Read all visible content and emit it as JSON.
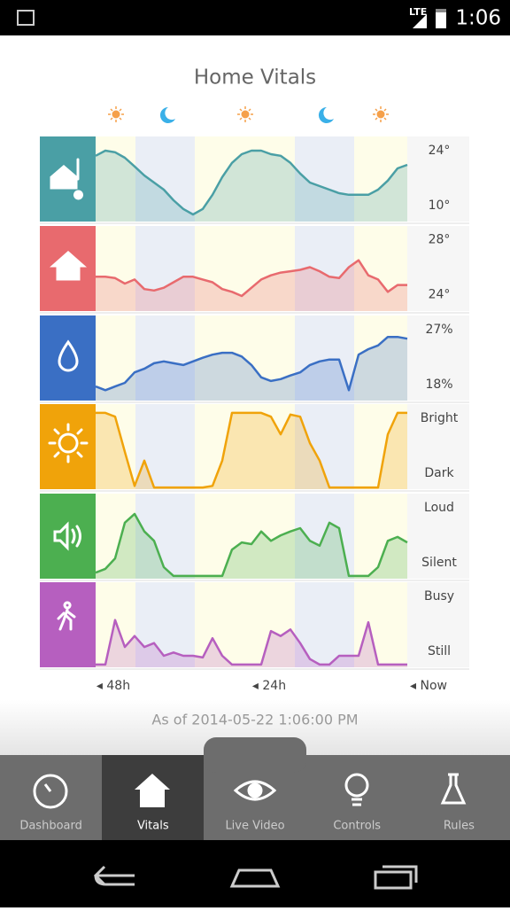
{
  "status_bar": {
    "network": "LTE",
    "time": "1:06"
  },
  "title": "Home Vitals",
  "panels": [
    {
      "type": "area",
      "color": "#4a9fa5",
      "ylim": [
        6,
        27.6
      ],
      "yticks": [
        {
          "value": 24,
          "label": "24°"
        },
        {
          "value": 10,
          "label": "10°"
        }
      ],
      "values": [
        22.7,
        24.0,
        23.6,
        22.2,
        20.0,
        17.7,
        15.9,
        14.1,
        11.4,
        9.2,
        7.8,
        9.2,
        12.8,
        17.3,
        20.9,
        23.1,
        24.0,
        24.0,
        23.1,
        22.7,
        20.9,
        18.2,
        15.9,
        15.0,
        14.1,
        13.2,
        12.8,
        12.8,
        12.8,
        14.1,
        16.4,
        19.5,
        20.4
      ]
    },
    {
      "type": "area",
      "color": "#e86a6e",
      "ylim": [
        22.8,
        29
      ],
      "yticks": [
        {
          "value": 28,
          "label": "28°"
        },
        {
          "value": 24,
          "label": "24°"
        }
      ],
      "values": [
        25.3,
        25.3,
        25.2,
        24.8,
        25.1,
        24.4,
        24.3,
        24.5,
        24.9,
        25.3,
        25.3,
        25.1,
        24.9,
        24.4,
        24.2,
        23.9,
        24.5,
        25.1,
        25.4,
        25.6,
        25.7,
        25.8,
        26.0,
        25.7,
        25.3,
        25.2,
        26.0,
        26.5,
        25.4,
        25.1,
        24.2,
        24.7,
        24.7
      ]
    },
    {
      "type": "area",
      "color": "#3a6fc4",
      "ylim": [
        15.4,
        29.3
      ],
      "yticks": [
        {
          "value": 27,
          "label": "27%"
        },
        {
          "value": 18,
          "label": "18%"
        }
      ],
      "values": [
        17.7,
        17.1,
        17.7,
        18.3,
        20.0,
        20.6,
        21.5,
        21.8,
        21.5,
        21.2,
        21.8,
        22.4,
        22.9,
        23.2,
        23.2,
        22.6,
        21.2,
        19.2,
        18.6,
        18.9,
        19.5,
        20.0,
        21.2,
        21.8,
        22.1,
        22.1,
        17.1,
        22.9,
        23.8,
        24.4,
        25.8,
        25.8,
        25.5
      ]
    },
    {
      "type": "area",
      "color": "#f0a30a",
      "ylim": [
        -0.29,
        1.26
      ],
      "yticks": [
        {
          "value": 1,
          "label": "Bright"
        },
        {
          "value": 0,
          "label": "Dark"
        }
      ],
      "values": [
        1.1,
        1.1,
        1.03,
        0.39,
        -0.23,
        0.23,
        -0.26,
        -0.26,
        -0.26,
        -0.26,
        -0.26,
        -0.26,
        -0.23,
        0.23,
        1.1,
        1.1,
        1.1,
        1.1,
        1.03,
        0.71,
        1.07,
        1.03,
        0.55,
        0.23,
        -0.26,
        -0.26,
        -0.26,
        -0.26,
        -0.26,
        -0.26,
        0.71,
        1.1,
        1.1
      ]
    },
    {
      "type": "area",
      "color": "#4caf50",
      "ylim": [
        -0.29,
        1.26
      ],
      "yticks": [
        {
          "value": 1,
          "label": "Loud"
        },
        {
          "value": 0,
          "label": "Silent"
        }
      ],
      "values": [
        -0.18,
        -0.11,
        0.08,
        0.73,
        0.89,
        0.57,
        0.4,
        -0.08,
        -0.24,
        -0.24,
        -0.24,
        -0.24,
        -0.24,
        -0.24,
        0.24,
        0.37,
        0.34,
        0.57,
        0.4,
        0.5,
        0.57,
        0.63,
        0.4,
        0.31,
        0.73,
        0.63,
        -0.24,
        -0.24,
        -0.24,
        -0.08,
        0.4,
        0.47,
        0.37
      ]
    },
    {
      "type": "area",
      "color": "#b65fbf",
      "ylim": [
        -0.29,
        1.26
      ],
      "yticks": [
        {
          "value": 1,
          "label": "Busy"
        },
        {
          "value": 0,
          "label": "Still"
        }
      ],
      "values": [
        -0.24,
        -0.24,
        0.57,
        0.08,
        0.28,
        0.08,
        0.15,
        -0.08,
        -0.02,
        -0.08,
        -0.08,
        -0.11,
        0.24,
        -0.08,
        -0.24,
        -0.24,
        -0.24,
        -0.24,
        0.37,
        0.28,
        0.4,
        0.15,
        -0.14,
        -0.24,
        -0.24,
        -0.08,
        -0.08,
        -0.08,
        0.53,
        -0.24,
        -0.24,
        -0.24,
        -0.24
      ]
    }
  ],
  "time_axis": [
    "◂ 48h",
    "◂ 24h",
    "◂ Now"
  ],
  "as_of": "As of 2014-05-22 1:06:00 PM",
  "tabs": [
    "Dashboard",
    "Vitals",
    "Live Video",
    "Controls",
    "Rules"
  ]
}
